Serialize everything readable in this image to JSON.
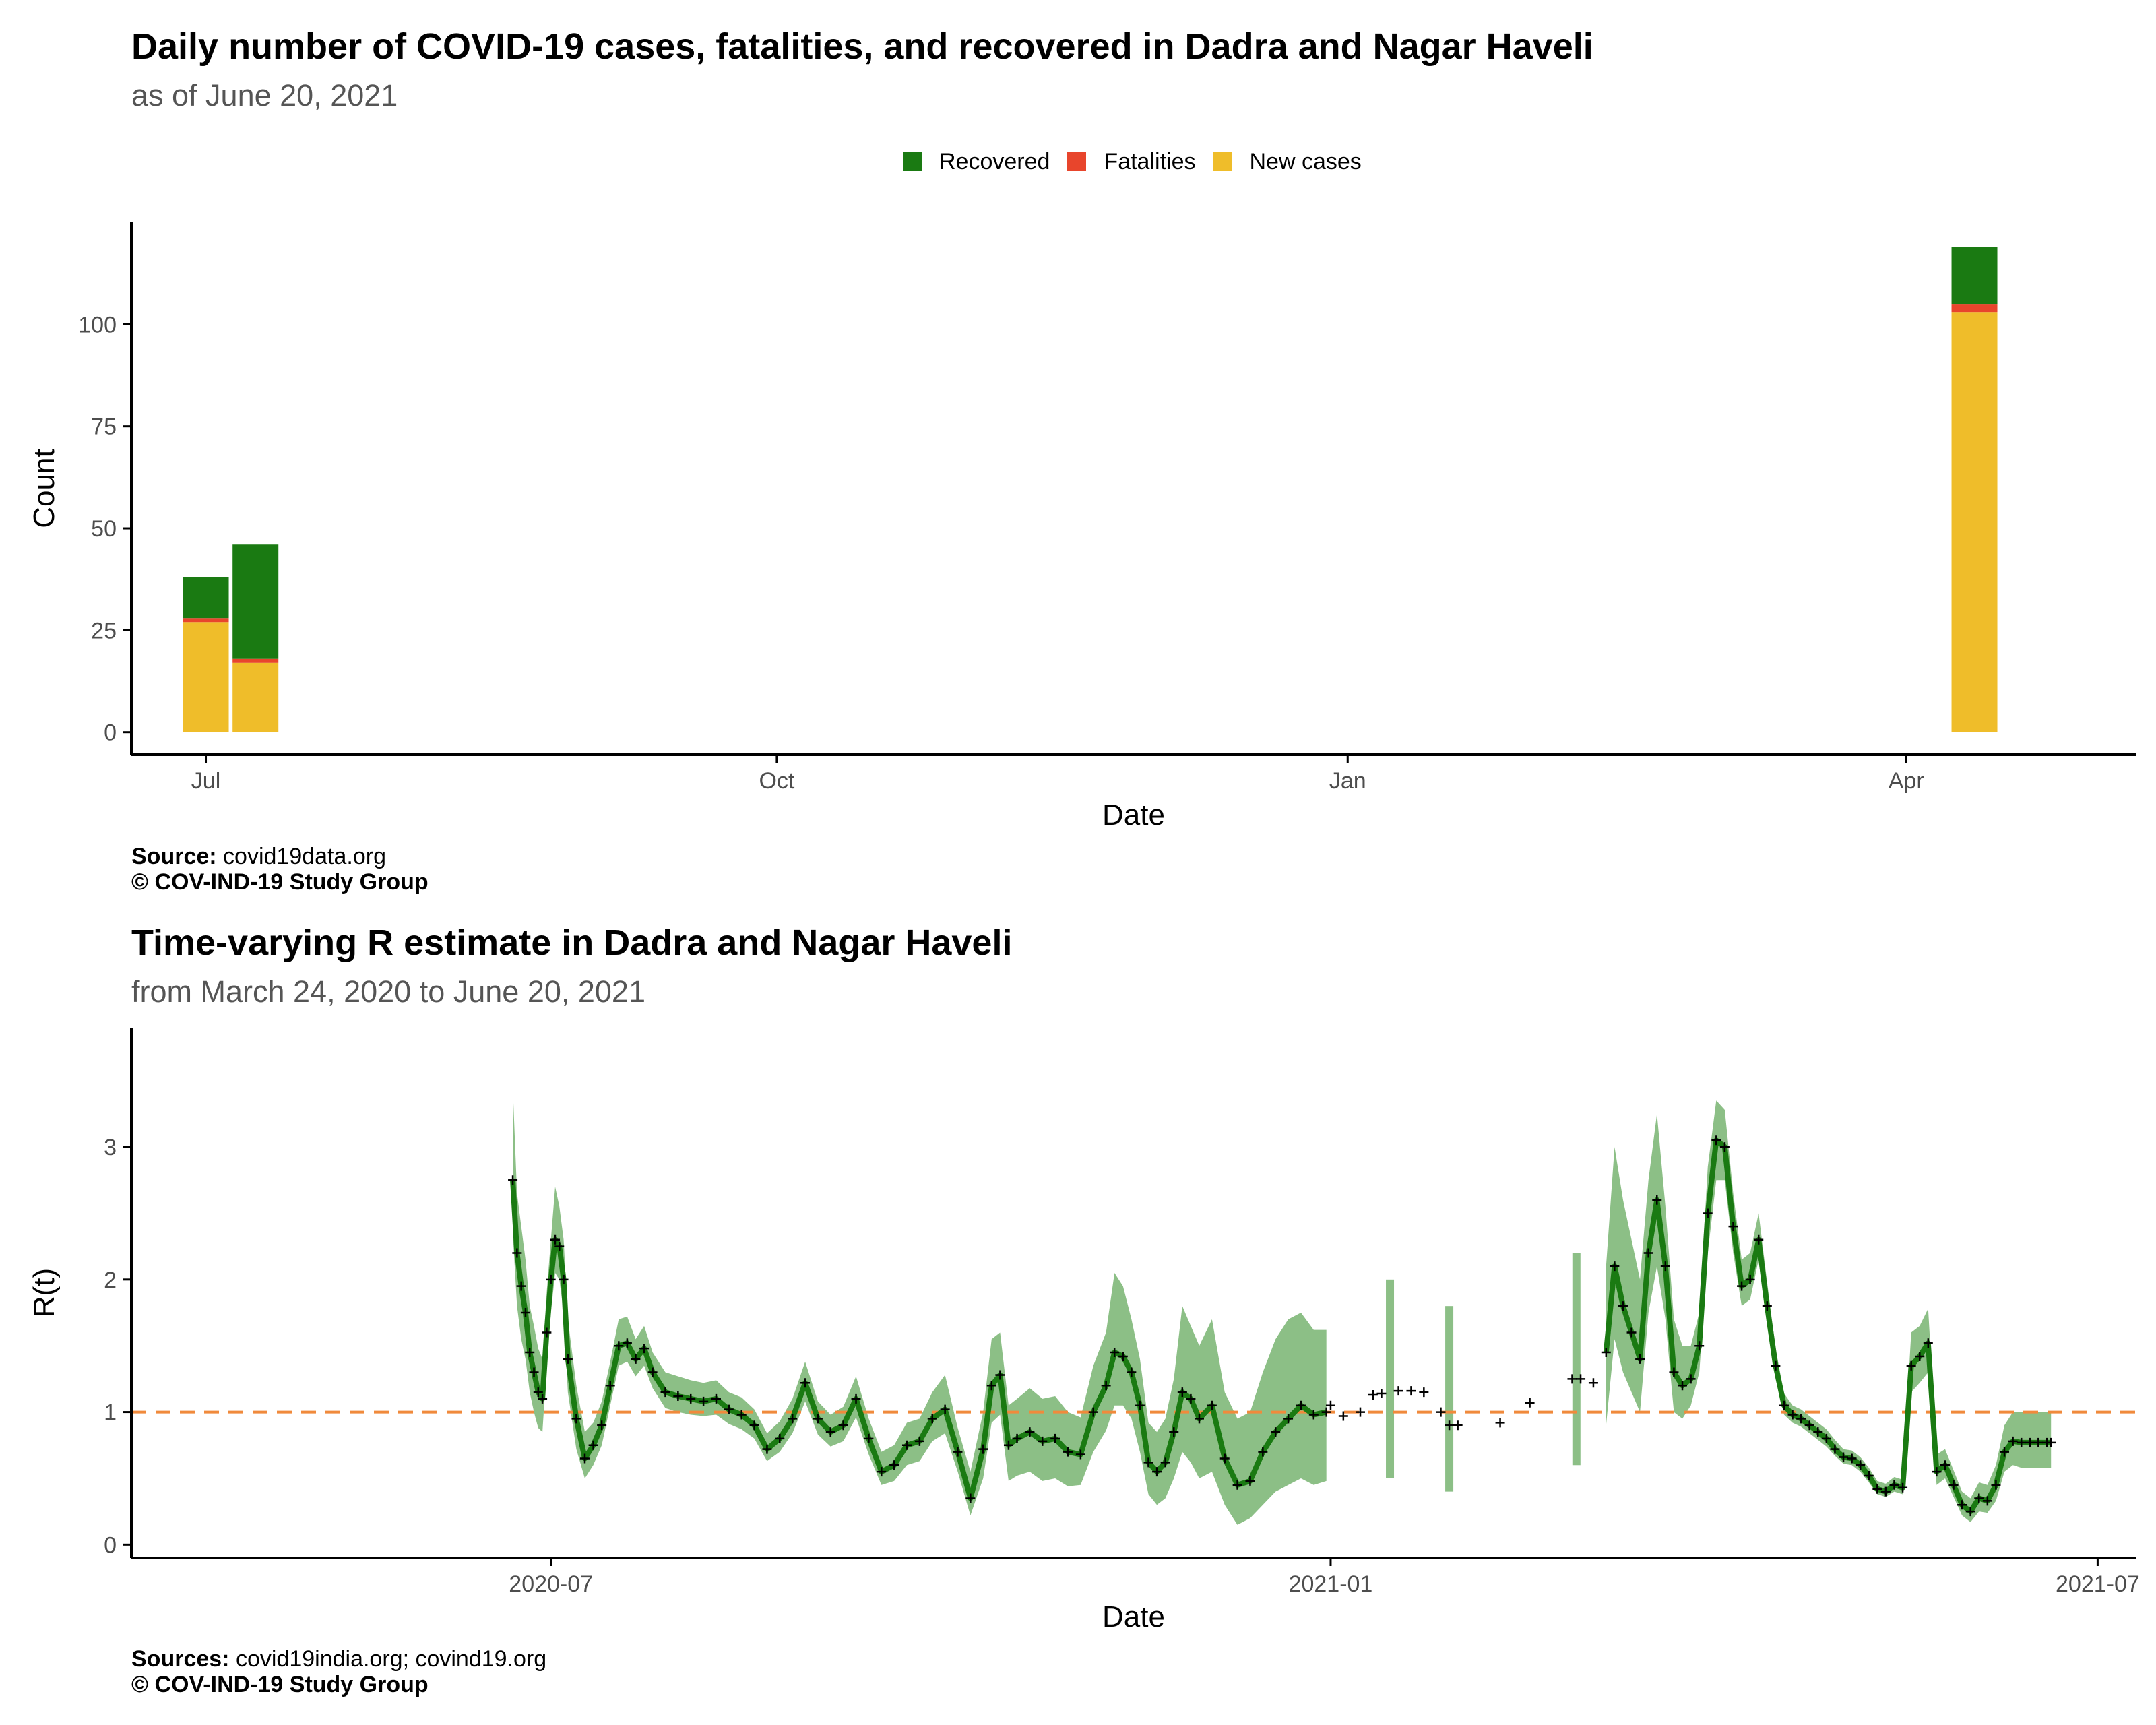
{
  "colors": {
    "recovered": "#1a7a12",
    "fatalities": "#e8452c",
    "new_cases": "#efbd2a",
    "rt_line": "#1a7a12",
    "rt_band": "#8cbf86",
    "reference": "#f08a3c",
    "axis": "#000000"
  },
  "chart_data": [
    {
      "type": "bar",
      "stacked": true,
      "title": "Daily number of COVID-19 cases, fatalities, and recovered in Dadra and Nagar Haveli",
      "subtitle": "as of June 20, 2021",
      "xlabel": "Date",
      "ylabel": "Count",
      "x_ticks": [
        "Jul",
        "Oct",
        "Jan",
        "Apr"
      ],
      "y_ticks": [
        0,
        25,
        50,
        75,
        100
      ],
      "ylim": [
        -5.5,
        125
      ],
      "legend_position": "top",
      "legend": [
        "Recovered",
        "Fatalities",
        "New cases"
      ],
      "categories": [
        "2020-07-01",
        "2020-07-09",
        "2021-04-12"
      ],
      "series": [
        {
          "name": "New cases",
          "values": [
            27,
            17,
            103
          ]
        },
        {
          "name": "Fatalities",
          "values": [
            1,
            1,
            2
          ]
        },
        {
          "name": "Recovered",
          "values": [
            10,
            28,
            14
          ]
        }
      ],
      "caption_source_label": "Source:",
      "caption_source": "covid19data.org",
      "caption_credit": "© COV-IND-19 Study Group"
    },
    {
      "type": "line",
      "title": "Time-varying R estimate in Dadra and Nagar Haveli",
      "subtitle": "from March 24, 2020 to June 20, 2021",
      "xlabel": "Date",
      "ylabel": "R(t)",
      "x_ticks": [
        "2020-07",
        "2021-01",
        "2021-07"
      ],
      "y_ticks": [
        0,
        1,
        2,
        3
      ],
      "ylim": [
        -0.1,
        3.9
      ],
      "reference_line": 1,
      "series": [
        {
          "x": [
            "2020-06-22",
            "2020-06-23",
            "2020-06-24",
            "2020-06-25",
            "2020-06-26",
            "2020-06-27",
            "2020-06-28",
            "2020-06-29",
            "2020-06-30",
            "2020-07-01",
            "2020-07-02",
            "2020-07-03",
            "2020-07-04",
            "2020-07-05",
            "2020-07-07",
            "2020-07-09",
            "2020-07-11",
            "2020-07-13",
            "2020-07-15",
            "2020-07-17",
            "2020-07-19",
            "2020-07-21",
            "2020-07-23",
            "2020-07-25",
            "2020-07-28",
            "2020-07-31",
            "2020-08-03",
            "2020-08-06",
            "2020-08-09",
            "2020-08-12",
            "2020-08-15",
            "2020-08-18",
            "2020-08-21",
            "2020-08-24",
            "2020-08-27",
            "2020-08-30",
            "2020-09-02",
            "2020-09-05",
            "2020-09-08",
            "2020-09-11",
            "2020-09-14",
            "2020-09-17",
            "2020-09-20",
            "2020-09-23",
            "2020-09-26",
            "2020-09-29",
            "2020-10-02",
            "2020-10-05",
            "2020-10-08",
            "2020-10-11",
            "2020-10-13",
            "2020-10-15",
            "2020-10-17",
            "2020-10-19",
            "2020-10-22",
            "2020-10-25",
            "2020-10-28",
            "2020-10-31",
            "2020-11-03",
            "2020-11-06",
            "2020-11-09",
            "2020-11-11",
            "2020-11-13",
            "2020-11-15",
            "2020-11-17",
            "2020-11-19",
            "2020-11-21",
            "2020-11-23",
            "2020-11-25",
            "2020-11-27",
            "2020-11-29",
            "2020-12-01",
            "2020-12-04",
            "2020-12-07",
            "2020-12-10",
            "2020-12-13",
            "2020-12-16",
            "2020-12-19",
            "2020-12-22",
            "2020-12-25",
            "2020-12-28",
            "2020-12-31"
          ],
          "y": [
            2.75,
            2.2,
            1.95,
            1.75,
            1.45,
            1.3,
            1.15,
            1.1,
            1.6,
            2.0,
            2.3,
            2.25,
            2.0,
            1.4,
            0.95,
            0.65,
            0.75,
            0.9,
            1.2,
            1.5,
            1.52,
            1.4,
            1.48,
            1.3,
            1.15,
            1.12,
            1.1,
            1.08,
            1.1,
            1.02,
            0.98,
            0.9,
            0.72,
            0.8,
            0.95,
            1.22,
            0.95,
            0.85,
            0.9,
            1.1,
            0.8,
            0.55,
            0.6,
            0.75,
            0.78,
            0.95,
            1.02,
            0.7,
            0.35,
            0.72,
            1.2,
            1.28,
            0.75,
            0.8,
            0.85,
            0.78,
            0.8,
            0.7,
            0.68,
            1.0,
            1.2,
            1.45,
            1.42,
            1.3,
            1.05,
            0.62,
            0.55,
            0.62,
            0.85,
            1.15,
            1.1,
            0.95,
            1.05,
            0.65,
            0.45,
            0.48,
            0.7,
            0.85,
            0.95,
            1.05,
            0.98,
            1.0
          ],
          "lo": [
            2.35,
            1.8,
            1.55,
            1.4,
            1.15,
            1.0,
            0.88,
            0.85,
            1.35,
            1.75,
            2.05,
            2.0,
            1.75,
            1.15,
            0.72,
            0.5,
            0.6,
            0.75,
            1.05,
            1.35,
            1.38,
            1.27,
            1.35,
            1.18,
            1.03,
            1.0,
            0.98,
            0.97,
            0.98,
            0.91,
            0.87,
            0.8,
            0.63,
            0.7,
            0.84,
            1.08,
            0.83,
            0.74,
            0.78,
            0.96,
            0.68,
            0.45,
            0.48,
            0.6,
            0.63,
            0.78,
            0.84,
            0.55,
            0.22,
            0.5,
            0.92,
            0.98,
            0.48,
            0.52,
            0.55,
            0.48,
            0.5,
            0.44,
            0.45,
            0.7,
            0.86,
            1.05,
            1.05,
            0.95,
            0.7,
            0.38,
            0.3,
            0.35,
            0.5,
            0.7,
            0.62,
            0.5,
            0.55,
            0.3,
            0.15,
            0.2,
            0.3,
            0.4,
            0.45,
            0.5,
            0.45,
            0.48
          ],
          "hi": [
            3.45,
            2.65,
            2.4,
            2.15,
            1.8,
            1.65,
            1.48,
            1.4,
            1.9,
            2.3,
            2.7,
            2.55,
            2.3,
            1.7,
            1.2,
            0.85,
            0.92,
            1.08,
            1.38,
            1.7,
            1.72,
            1.55,
            1.65,
            1.45,
            1.3,
            1.27,
            1.24,
            1.22,
            1.24,
            1.15,
            1.11,
            1.02,
            0.84,
            0.93,
            1.1,
            1.38,
            1.08,
            0.98,
            1.04,
            1.27,
            0.95,
            0.7,
            0.75,
            0.92,
            0.95,
            1.15,
            1.28,
            0.88,
            0.55,
            1.0,
            1.55,
            1.6,
            1.05,
            1.1,
            1.18,
            1.1,
            1.12,
            1.0,
            0.96,
            1.35,
            1.6,
            2.05,
            1.95,
            1.7,
            1.4,
            0.92,
            0.85,
            0.95,
            1.25,
            1.8,
            1.65,
            1.5,
            1.7,
            1.15,
            0.95,
            1.0,
            1.3,
            1.55,
            1.7,
            1.75,
            1.62,
            1.62
          ]
        },
        {
          "x": [
            "2021-03-07",
            "2021-03-09",
            "2021-03-11",
            "2021-03-13",
            "2021-03-15",
            "2021-03-17",
            "2021-03-19",
            "2021-03-21",
            "2021-03-23",
            "2021-03-25",
            "2021-03-27",
            "2021-03-29",
            "2021-03-31",
            "2021-04-02",
            "2021-04-04",
            "2021-04-06",
            "2021-04-08",
            "2021-04-10",
            "2021-04-12",
            "2021-04-14",
            "2021-04-16",
            "2021-04-18",
            "2021-04-20",
            "2021-04-22",
            "2021-04-24",
            "2021-04-26",
            "2021-04-28",
            "2021-04-30",
            "2021-05-02",
            "2021-05-04",
            "2021-05-06",
            "2021-05-08",
            "2021-05-10",
            "2021-05-12",
            "2021-05-14",
            "2021-05-16",
            "2021-05-18",
            "2021-05-20",
            "2021-05-22",
            "2021-05-24",
            "2021-05-26",
            "2021-05-28",
            "2021-05-30",
            "2021-06-01",
            "2021-06-03",
            "2021-06-05",
            "2021-06-07",
            "2021-06-09",
            "2021-06-11",
            "2021-06-13",
            "2021-06-15",
            "2021-06-17",
            "2021-06-19",
            "2021-06-20"
          ],
          "y": [
            1.45,
            2.1,
            1.8,
            1.6,
            1.4,
            2.2,
            2.6,
            2.1,
            1.3,
            1.2,
            1.25,
            1.5,
            2.5,
            3.05,
            3.0,
            2.4,
            1.95,
            2.0,
            2.3,
            1.8,
            1.35,
            1.05,
            0.98,
            0.95,
            0.9,
            0.85,
            0.8,
            0.72,
            0.66,
            0.65,
            0.6,
            0.52,
            0.42,
            0.4,
            0.45,
            0.43,
            1.35,
            1.42,
            1.52,
            0.55,
            0.6,
            0.45,
            0.3,
            0.25,
            0.35,
            0.33,
            0.45,
            0.7,
            0.78,
            0.77,
            0.77,
            0.77,
            0.77,
            0.77
          ],
          "lo": [
            0.9,
            1.55,
            1.3,
            1.15,
            1.0,
            1.75,
            2.1,
            1.7,
            1.0,
            0.95,
            1.05,
            1.3,
            2.2,
            2.75,
            2.75,
            2.2,
            1.8,
            1.85,
            2.15,
            1.65,
            1.25,
            0.98,
            0.92,
            0.89,
            0.84,
            0.79,
            0.74,
            0.67,
            0.61,
            0.6,
            0.55,
            0.47,
            0.38,
            0.36,
            0.4,
            0.38,
            1.15,
            1.22,
            1.3,
            0.45,
            0.5,
            0.36,
            0.22,
            0.17,
            0.25,
            0.24,
            0.33,
            0.55,
            0.6,
            0.58,
            0.58,
            0.58,
            0.58,
            0.58
          ],
          "hi": [
            2.1,
            3.0,
            2.6,
            2.3,
            2.0,
            2.75,
            3.25,
            2.55,
            1.7,
            1.5,
            1.5,
            1.75,
            2.85,
            3.35,
            3.28,
            2.65,
            2.15,
            2.2,
            2.5,
            1.98,
            1.48,
            1.14,
            1.05,
            1.02,
            0.97,
            0.92,
            0.87,
            0.79,
            0.72,
            0.71,
            0.66,
            0.58,
            0.48,
            0.46,
            0.51,
            0.49,
            1.6,
            1.65,
            1.78,
            0.68,
            0.72,
            0.56,
            0.4,
            0.35,
            0.47,
            0.45,
            0.6,
            0.9,
            1.0,
            1.0,
            1.0,
            1.0,
            1.0,
            1.0
          ]
        }
      ],
      "vertical_bands": [
        {
          "x": "2021-01-15",
          "lo": 0.5,
          "hi": 2.0
        },
        {
          "x": "2021-01-29",
          "lo": 0.4,
          "hi": 1.8
        },
        {
          "x": "2021-02-28",
          "lo": 0.6,
          "hi": 2.2
        }
      ],
      "isolated_points": [
        {
          "x": "2021-01-01",
          "y": 1.05
        },
        {
          "x": "2021-01-04",
          "y": 0.97
        },
        {
          "x": "2021-01-08",
          "y": 1.0
        },
        {
          "x": "2021-01-11",
          "y": 1.13
        },
        {
          "x": "2021-01-13",
          "y": 1.14
        },
        {
          "x": "2021-01-17",
          "y": 1.16
        },
        {
          "x": "2021-01-20",
          "y": 1.16
        },
        {
          "x": "2021-01-23",
          "y": 1.15
        },
        {
          "x": "2021-01-27",
          "y": 1.0
        },
        {
          "x": "2021-01-29",
          "y": 0.9
        },
        {
          "x": "2021-01-31",
          "y": 0.9
        },
        {
          "x": "2021-02-10",
          "y": 0.92
        },
        {
          "x": "2021-02-17",
          "y": 1.07
        },
        {
          "x": "2021-02-27",
          "y": 1.25
        },
        {
          "x": "2021-03-01",
          "y": 1.25
        },
        {
          "x": "2021-03-04",
          "y": 1.22
        }
      ],
      "caption_source_label": "Sources:",
      "caption_source": "covid19india.org; covind19.org",
      "caption_credit": "© COV-IND-19 Study Group"
    }
  ]
}
